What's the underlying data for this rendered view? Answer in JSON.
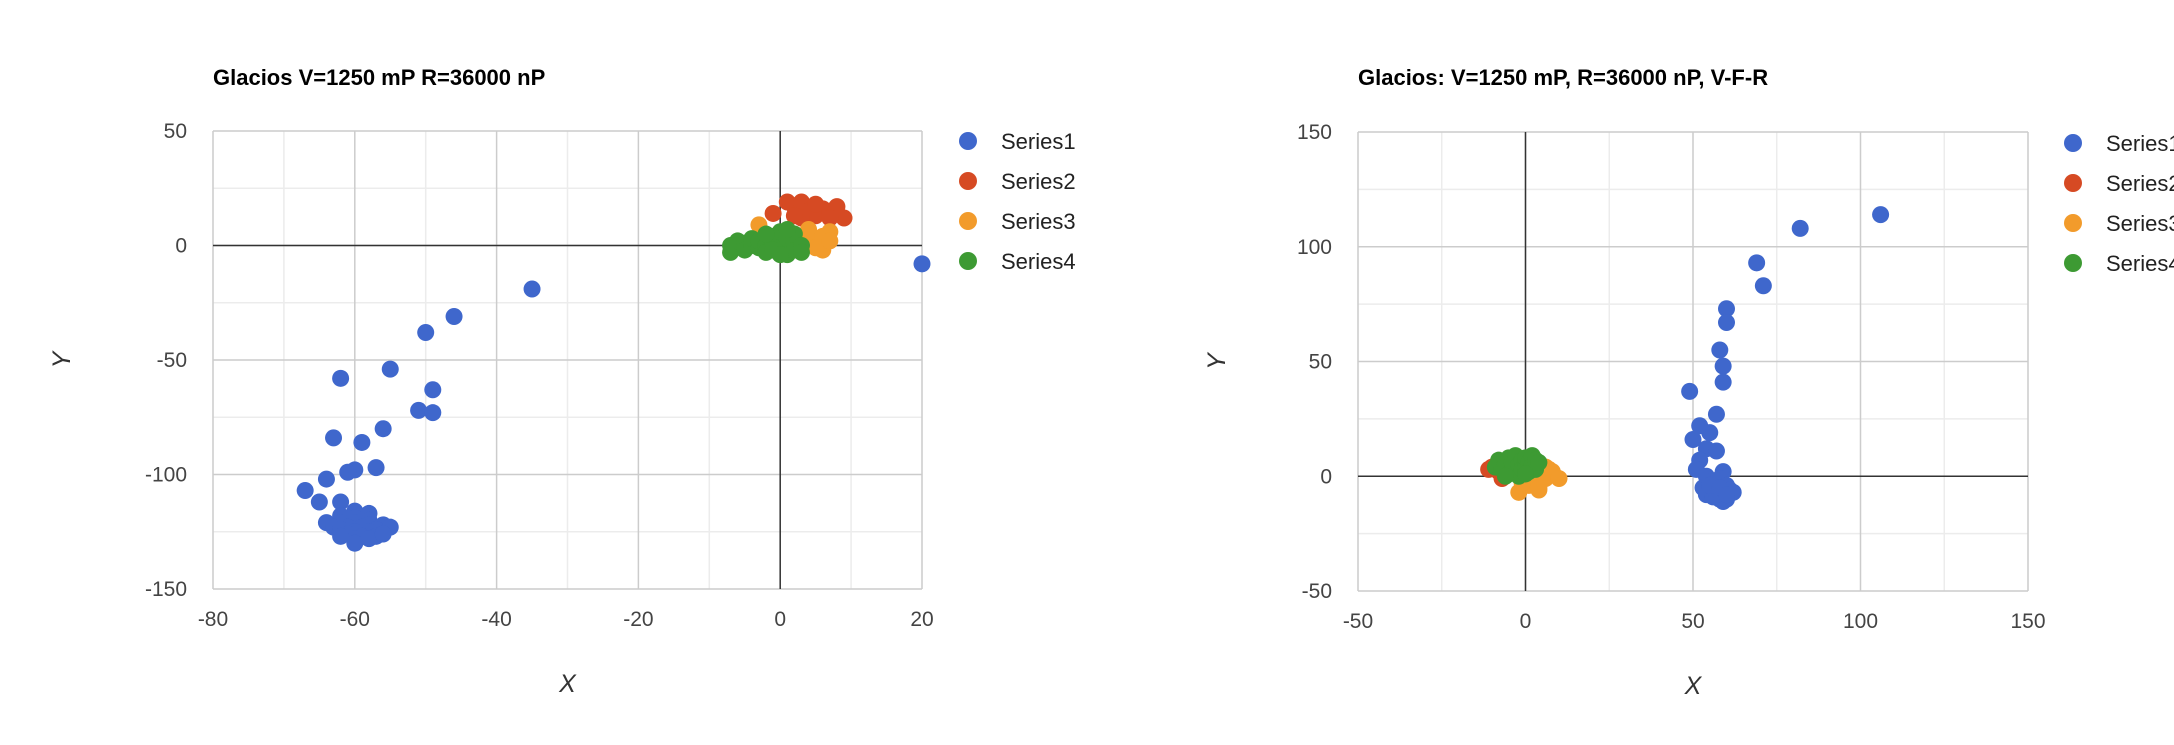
{
  "charts": [
    {
      "id": "left",
      "chart_data": {
        "type": "scatter",
        "title": "Glacios V=1250 mP R=36000 nP",
        "xlabel": "X",
        "ylabel": "Y",
        "xlim": [
          -80,
          20
        ],
        "ylim": [
          -150,
          50
        ],
        "xticks": [
          -80,
          -60,
          -40,
          -20,
          0,
          20
        ],
        "yticks": [
          -150,
          -100,
          -50,
          0,
          50
        ],
        "grid": true,
        "legend": "right",
        "series": [
          {
            "name": "Series1",
            "color": "#3f67cc",
            "points": [
              [
                -35,
                -19
              ],
              [
                -46,
                -31
              ],
              [
                -50,
                -38
              ],
              [
                -55,
                -54
              ],
              [
                -62,
                -58
              ],
              [
                -49,
                -63
              ],
              [
                -51,
                -72
              ],
              [
                -49,
                -73
              ],
              [
                -56,
                -80
              ],
              [
                -63,
                -84
              ],
              [
                -59,
                -86
              ],
              [
                -57,
                -97
              ],
              [
                -60,
                -98
              ],
              [
                -61,
                -99
              ],
              [
                -64,
                -102
              ],
              [
                -67,
                -107
              ],
              [
                -65,
                -112
              ],
              [
                -62,
                -112
              ],
              [
                -60,
                -116
              ],
              [
                -58,
                -117
              ],
              [
                -62,
                -118
              ],
              [
                -60,
                -119
              ],
              [
                -58,
                -120
              ],
              [
                -64,
                -121
              ],
              [
                -62,
                -121
              ],
              [
                -60,
                -121
              ],
              [
                -58,
                -122
              ],
              [
                -56,
                -122
              ],
              [
                -63,
                -123
              ],
              [
                -61,
                -123
              ],
              [
                -59,
                -123
              ],
              [
                -57,
                -124
              ],
              [
                -55,
                -123
              ],
              [
                -62,
                -124
              ],
              [
                -60,
                -125
              ],
              [
                -58,
                -125
              ],
              [
                -61,
                -126
              ],
              [
                -59,
                -127
              ],
              [
                -57,
                -127
              ],
              [
                -60,
                -128
              ],
              [
                -58,
                -128
              ],
              [
                -62,
                -127
              ],
              [
                -56,
                -126
              ],
              [
                -60,
                -130
              ],
              [
                20,
                -8
              ]
            ]
          },
          {
            "name": "Series2",
            "color": "#d64a23",
            "points": [
              [
                -1,
                14
              ],
              [
                1,
                19
              ],
              [
                2,
                17
              ],
              [
                3,
                19
              ],
              [
                4,
                15
              ],
              [
                5,
                13
              ],
              [
                6,
                16
              ],
              [
                7,
                15
              ],
              [
                8,
                14
              ],
              [
                8,
                17
              ],
              [
                9,
                12
              ],
              [
                5,
                18
              ],
              [
                3,
                12
              ],
              [
                7,
                12
              ],
              [
                2,
                13
              ]
            ]
          },
          {
            "name": "Series3",
            "color": "#f29b2b",
            "points": [
              [
                -3,
                9
              ],
              [
                5,
                3
              ],
              [
                6,
                0
              ],
              [
                7,
                6
              ],
              [
                6,
                -2
              ],
              [
                4,
                4
              ],
              [
                3,
                1
              ],
              [
                2,
                5
              ],
              [
                1,
                3
              ],
              [
                0,
                -1
              ],
              [
                -1,
                2
              ],
              [
                5,
                -1
              ],
              [
                4,
                7
              ],
              [
                6,
                4
              ],
              [
                7,
                2
              ],
              [
                3,
                -2
              ]
            ]
          },
          {
            "name": "Series4",
            "color": "#3d9a33",
            "points": [
              [
                -7,
                0
              ],
              [
                -7,
                -3
              ],
              [
                -6,
                2
              ],
              [
                -5,
                1
              ],
              [
                -5,
                -2
              ],
              [
                -4,
                0
              ],
              [
                -4,
                3
              ],
              [
                -3,
                -1
              ],
              [
                -3,
                2
              ],
              [
                -2,
                0
              ],
              [
                -2,
                -3
              ],
              [
                -1,
                1
              ],
              [
                -1,
                4
              ],
              [
                0,
                -1
              ],
              [
                0,
                2
              ],
              [
                0,
                6
              ],
              [
                1,
                0
              ],
              [
                1,
                3
              ],
              [
                1,
                -4
              ],
              [
                2,
                1
              ],
              [
                2,
                -2
              ],
              [
                2,
                5
              ],
              [
                3,
                0
              ],
              [
                3,
                -3
              ],
              [
                -2,
                5
              ],
              [
                -1,
                -2
              ],
              [
                0,
                -4
              ],
              [
                1,
                7
              ]
            ]
          }
        ]
      }
    },
    {
      "id": "right",
      "chart_data": {
        "type": "scatter",
        "title": "Glacios: V=1250 mP, R=36000 nP, V-F-R",
        "xlabel": "X",
        "ylabel": "Y",
        "xlim": [
          -50,
          150
        ],
        "ylim": [
          -50,
          150
        ],
        "xticks": [
          -50,
          0,
          50,
          100,
          150
        ],
        "yticks": [
          -50,
          0,
          50,
          100,
          150
        ],
        "grid": true,
        "legend": "right",
        "series": [
          {
            "name": "Series1",
            "color": "#3f67cc",
            "points": [
              [
                106,
                114
              ],
              [
                82,
                108
              ],
              [
                69,
                93
              ],
              [
                71,
                83
              ],
              [
                60,
                73
              ],
              [
                60,
                67
              ],
              [
                58,
                55
              ],
              [
                59,
                48
              ],
              [
                59,
                41
              ],
              [
                49,
                37
              ],
              [
                57,
                27
              ],
              [
                52,
                22
              ],
              [
                55,
                19
              ],
              [
                50,
                16
              ],
              [
                54,
                12
              ],
              [
                57,
                11
              ],
              [
                52,
                7
              ],
              [
                59,
                2
              ],
              [
                51,
                3
              ],
              [
                54,
                0
              ],
              [
                56,
                -2
              ],
              [
                58,
                -1
              ],
              [
                60,
                -4
              ],
              [
                53,
                -5
              ],
              [
                55,
                -6
              ],
              [
                57,
                -7
              ],
              [
                59,
                -7
              ],
              [
                61,
                -6
              ],
              [
                62,
                -7
              ],
              [
                54,
                -8
              ],
              [
                56,
                -9
              ],
              [
                58,
                -10
              ],
              [
                60,
                -10
              ],
              [
                59,
                -11
              ],
              [
                57,
                -8
              ],
              [
                55,
                -4
              ],
              [
                58,
                -5
              ],
              [
                60,
                -8
              ]
            ]
          },
          {
            "name": "Series2",
            "color": "#d64a23",
            "points": [
              [
                -11,
                3
              ],
              [
                -10,
                4
              ],
              [
                -7,
                -1
              ],
              [
                -6,
                6
              ],
              [
                -8,
                2
              ]
            ]
          },
          {
            "name": "Series3",
            "color": "#f29b2b",
            "points": [
              [
                -2,
                -7
              ],
              [
                1,
                -4
              ],
              [
                3,
                -3
              ],
              [
                4,
                -6
              ],
              [
                6,
                -1
              ],
              [
                7,
                3
              ],
              [
                8,
                2
              ],
              [
                10,
                -1
              ],
              [
                2,
                1
              ],
              [
                5,
                0
              ],
              [
                3,
                4
              ],
              [
                -1,
                -3
              ],
              [
                4,
                -5
              ],
              [
                6,
                4
              ]
            ]
          },
          {
            "name": "Series4",
            "color": "#3d9a33",
            "points": [
              [
                -9,
                4
              ],
              [
                -8,
                7
              ],
              [
                -7,
                3
              ],
              [
                -6,
                5
              ],
              [
                -5,
                8
              ],
              [
                -5,
                1
              ],
              [
                -4,
                3
              ],
              [
                -4,
                6
              ],
              [
                -3,
                2
              ],
              [
                -3,
                9
              ],
              [
                -2,
                5
              ],
              [
                -2,
                0
              ],
              [
                -1,
                7
              ],
              [
                -1,
                3
              ],
              [
                0,
                4
              ],
              [
                0,
                8
              ],
              [
                1,
                6
              ],
              [
                1,
                2
              ],
              [
                2,
                5
              ],
              [
                2,
                9
              ],
              [
                3,
                7
              ],
              [
                3,
                3
              ],
              [
                4,
                6
              ],
              [
                -6,
                0
              ],
              [
                0,
                1
              ]
            ]
          }
        ]
      }
    }
  ]
}
